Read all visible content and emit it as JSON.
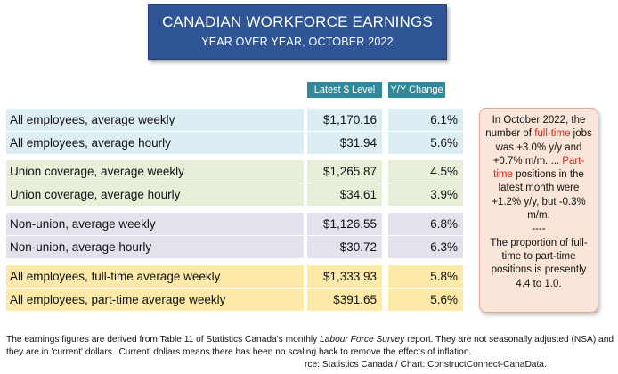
{
  "title": "CANADIAN WORKFORCE EARNINGS",
  "subtitle": "YEAR OVER YEAR, OCTOBER 2022",
  "headers": {
    "level": "Latest $ Level",
    "change": "Y/Y Change"
  },
  "chart_data": {
    "type": "table",
    "title": "CANADIAN WORKFORCE EARNINGS",
    "subtitle": "YEAR OVER YEAR, OCTOBER 2022",
    "columns": [
      "",
      "Latest $ Level",
      "Y/Y Change"
    ],
    "rows": [
      {
        "label": "All employees, average weekly",
        "level": "$1,170.16",
        "change": "6.1%",
        "color": "#dcedf4"
      },
      {
        "label": "All employees, average hourly",
        "level": "$31.94",
        "change": "5.6%",
        "color": "#dcedf4"
      },
      {
        "label": "Union coverage, average weekly",
        "level": "$1,265.87",
        "change": "4.5%",
        "color": "#e8efd9"
      },
      {
        "label": "Union coverage, average hourly",
        "level": "$34.61",
        "change": "3.9%",
        "color": "#e8efd9"
      },
      {
        "label": "Non-union, average weekly",
        "level": "$1,126.55",
        "change": "6.8%",
        "color": "#e4e0ec"
      },
      {
        "label": "Non-union, average hourly",
        "level": "$30.72",
        "change": "6.3%",
        "color": "#e4e0ec"
      },
      {
        "label": "All employees, full-time average weekly",
        "level": "$1,333.93",
        "change": "5.8%",
        "color": "#fde9a8"
      },
      {
        "label": "All employees, part-time average weekly",
        "level": "$391.65",
        "change": "5.6%",
        "color": "#fde9a8"
      }
    ]
  },
  "note": {
    "p1a": "In October 2022, the number of ",
    "p1b": "full-time",
    "p1c": " jobs was +3.0% y/y and +0.7% m/m. ... ",
    "p1d": "Part-time",
    "p1e": " positions in the latest month were +1.2% y/y, but -0.3% m/m.",
    "sep": "----",
    "p2": "The proportion of full-time to part-time positions is presently 4.4 to 1.0."
  },
  "footnote": {
    "a": "The earnings figures are derived from Table 11 of Statistics Canada's monthly ",
    "b": "Labour Force Survey",
    "c": "  report. They are not seasonally adjusted (NSA) and they are in 'current' dollars. 'Current' dollars means there has been no scaling back to remove the effects of inflation."
  },
  "source": "rce: Statistics Canada / Chart: ConstructConnect-CanaData."
}
